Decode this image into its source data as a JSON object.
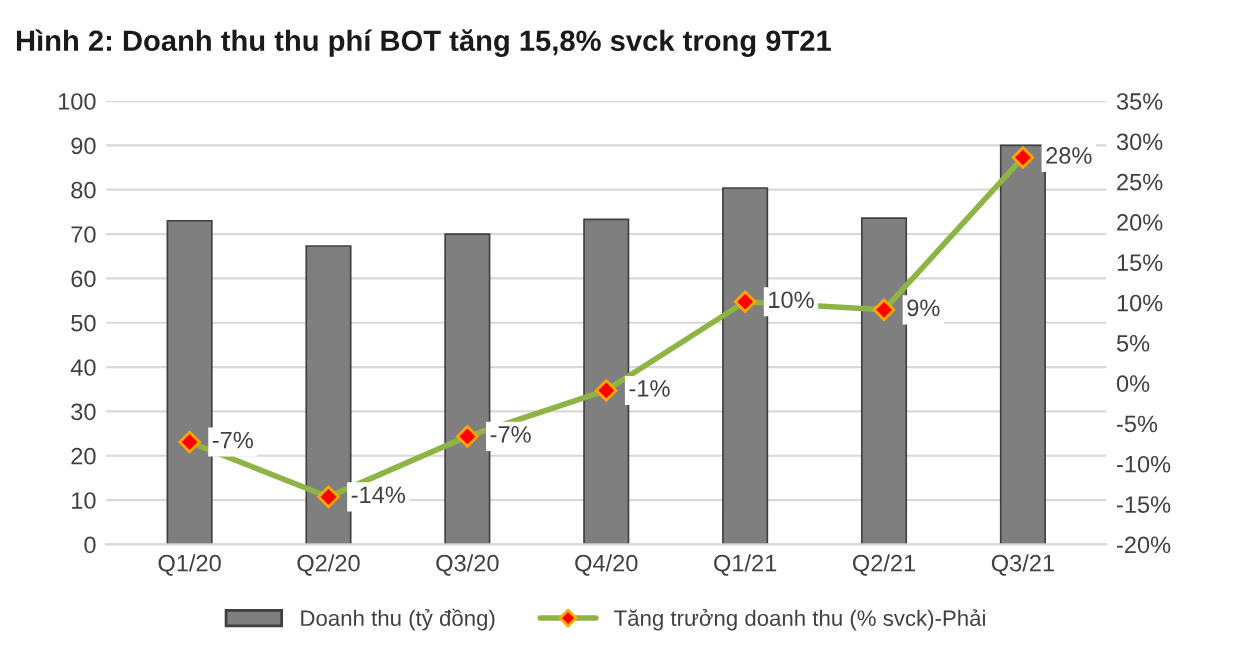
{
  "chart_data": {
    "type": "bar",
    "title": "Hình 2: Doanh thu thu phí BOT tăng 15,8% svck trong 9T21",
    "categories": [
      "Q1/20",
      "Q2/20",
      "Q3/20",
      "Q4/20",
      "Q1/21",
      "Q2/21",
      "Q3/21"
    ],
    "series": [
      {
        "name": "Doanh thu (tỷ đồng)",
        "color": "#7f7f80",
        "values": [
          73,
          67.3,
          70,
          73.3,
          80.4,
          73.6,
          90
        ]
      },
      {
        "name": "Tăng trưởng doanh thu (% svck)-Phải",
        "type": "line",
        "axis": "y2",
        "color": "#8db444",
        "marker": "diamond",
        "line_style": "solid",
        "values": [
          -7.3,
          -14.1,
          -6.6,
          -0.9,
          10.1,
          9.1,
          28
        ],
        "value_labels": [
          "-7%",
          "-14%",
          "-7%",
          "-1%",
          "10%",
          "9%",
          "28%"
        ]
      }
    ],
    "ylim": [
      0,
      100
    ],
    "yticks": [
      0,
      10,
      20,
      30,
      40,
      50,
      60,
      70,
      80,
      90,
      100
    ],
    "y2lim": [
      -20,
      35
    ],
    "y2ticks": [
      {
        "value": -20,
        "label": "-20%"
      },
      {
        "value": -15,
        "label": "-15%"
      },
      {
        "value": -10,
        "label": "-10%"
      },
      {
        "value": -5,
        "label": "-5%"
      },
      {
        "value": 0,
        "label": "0%"
      },
      {
        "value": 5,
        "label": "5%"
      },
      {
        "value": 10,
        "label": "10%"
      },
      {
        "value": 15,
        "label": "15%"
      },
      {
        "value": 20,
        "label": "20%"
      },
      {
        "value": 25,
        "label": "25%"
      },
      {
        "value": 30,
        "label": "30%"
      },
      {
        "value": 35,
        "label": "35%"
      }
    ],
    "grid": "y",
    "legend": "bottom"
  }
}
